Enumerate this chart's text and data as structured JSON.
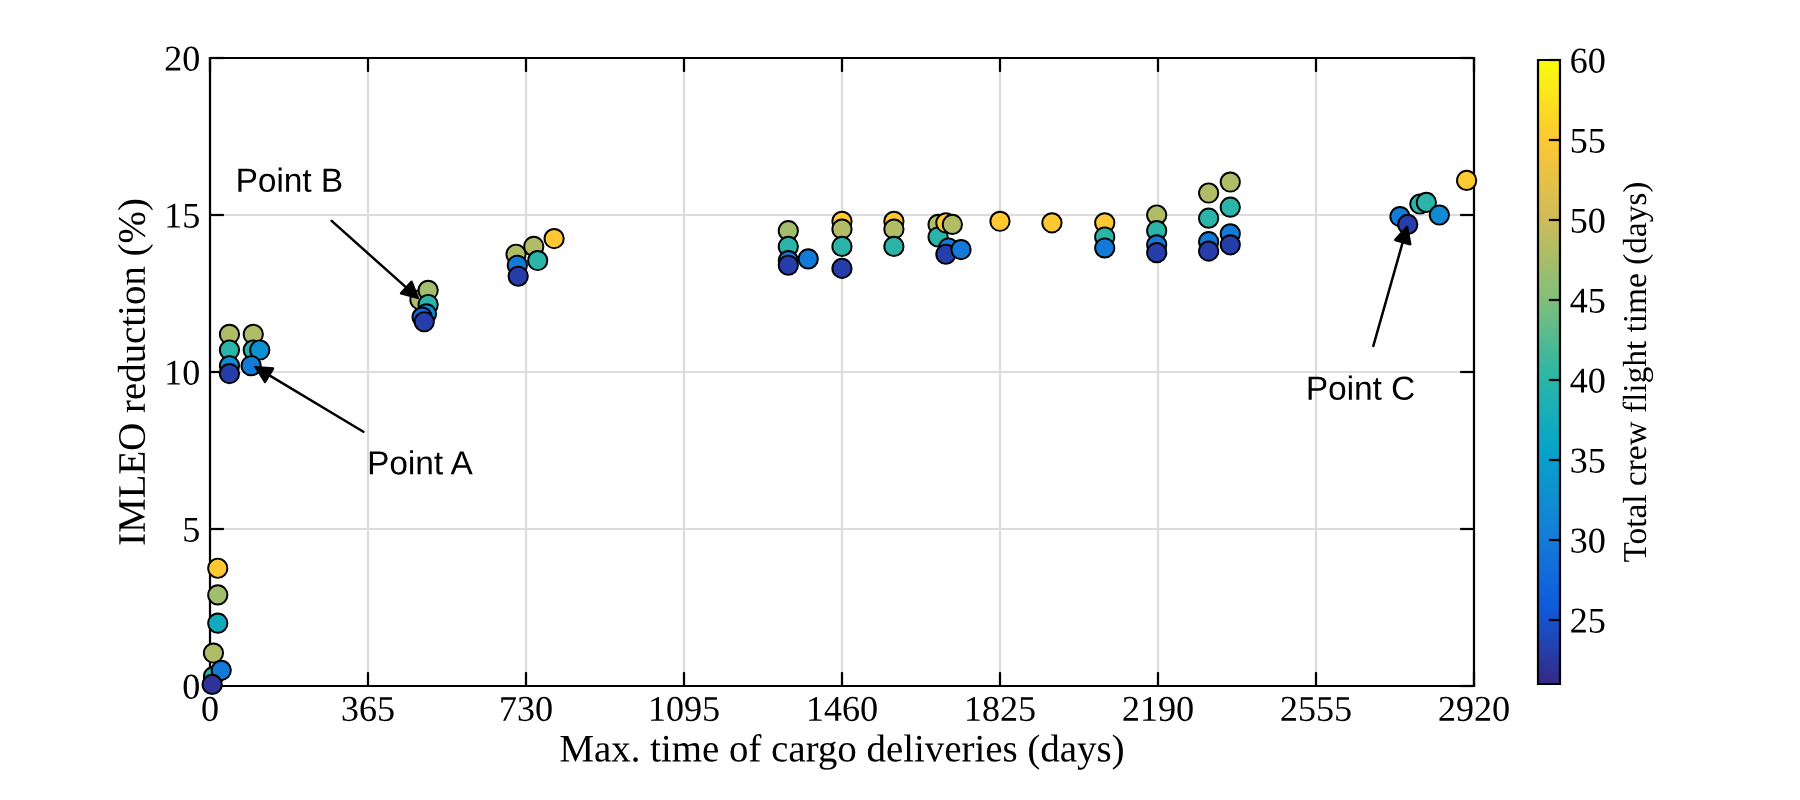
{
  "chart_data": {
    "type": "scatter",
    "xlabel": "Max. time of cargo deliveries (days)",
    "ylabel": "IMLEO reduction (%)",
    "clabel": "Total crew flight time (days)",
    "xlim": [
      0,
      2920
    ],
    "xticks": [
      0,
      365,
      730,
      1095,
      1460,
      1825,
      2190,
      2555,
      2920
    ],
    "ylim": [
      0,
      20
    ],
    "yticks": [
      0,
      5,
      10,
      15,
      20
    ],
    "clim": [
      21,
      60
    ],
    "cticks": [
      25,
      30,
      35,
      40,
      45,
      50,
      55,
      60
    ],
    "grid": true,
    "marker": "circle",
    "series": [
      {
        "x": [
          18,
          18,
          18,
          8,
          8,
          26,
          5,
          45,
          45,
          45,
          45,
          100,
          100,
          115,
          95,
          485,
          504,
          504,
          500,
          490,
          495,
          707,
          748,
          795,
          757,
          710,
          712,
          1336,
          1336,
          1336,
          1336,
          1382,
          1460,
          1460,
          1460,
          1460,
          1580,
          1580,
          1580,
          1682,
          1682,
          1700,
          1715,
          1706,
          1700,
          1735,
          1825,
          1945,
          2067,
          2067,
          2067,
          2187,
          2187,
          2187,
          2187,
          2307,
          2307,
          2307,
          2307,
          2357,
          2357,
          2357,
          2357,
          2749,
          2767,
          2795,
          2810,
          2840,
          2903
        ],
        "values": [
          3.75,
          2.9,
          2.0,
          1.05,
          0.3,
          0.5,
          0.05,
          11.2,
          10.7,
          10.2,
          9.95,
          11.2,
          10.7,
          10.7,
          10.2,
          12.3,
          12.6,
          12.15,
          11.85,
          11.75,
          11.6,
          13.75,
          14.0,
          14.25,
          13.55,
          13.4,
          13.05,
          14.5,
          14.0,
          13.55,
          13.4,
          13.6,
          14.8,
          14.55,
          14.0,
          13.3,
          14.8,
          14.55,
          14.0,
          14.7,
          14.3,
          14.75,
          14.7,
          13.95,
          13.75,
          13.9,
          14.8,
          14.75,
          14.75,
          14.3,
          13.95,
          15.0,
          14.5,
          14.05,
          13.8,
          15.7,
          14.9,
          14.15,
          13.85,
          16.05,
          15.25,
          14.4,
          14.05,
          14.95,
          14.7,
          15.35,
          15.4,
          15.0,
          16.1
        ],
        "cvalues": [
          55,
          47,
          37,
          48,
          40,
          30,
          22,
          48,
          40,
          32,
          23,
          48,
          39,
          33,
          30,
          48,
          47,
          40,
          32,
          28,
          23,
          48,
          48,
          55,
          40,
          30,
          23,
          47,
          40,
          30,
          23,
          30,
          55,
          48,
          40,
          23,
          55,
          48,
          40,
          48,
          40,
          55,
          48,
          30,
          23,
          30,
          55,
          55,
          55,
          40,
          30,
          48,
          40,
          30,
          23,
          48,
          40,
          30,
          23,
          48,
          40,
          30,
          23,
          30,
          23,
          40,
          40,
          32,
          55
        ]
      }
    ],
    "annotations": [
      {
        "text": "Point A",
        "x": 100,
        "y": 10.2
      },
      {
        "text": "Point B",
        "x": 485,
        "y": 12.3
      },
      {
        "text": "Point C",
        "x": 2767,
        "y": 14.7
      }
    ]
  }
}
